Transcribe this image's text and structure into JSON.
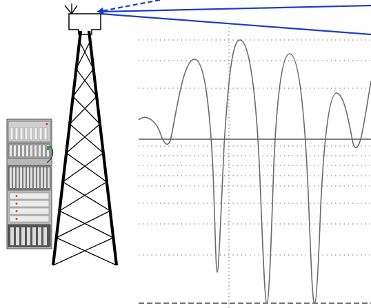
{
  "diagram": {
    "type": "radio-tower-signal-fading",
    "colors": {
      "background": "#ffffff",
      "signal_lines": "#1a3ccc",
      "tower": "#000000",
      "waveform": "#6a6a6a",
      "axis": "#333333",
      "grid": "#555555",
      "rack_body": "#b8b8b8",
      "rack_dark": "#4a4a4a"
    },
    "icons": {
      "antenna": "antenna-icon",
      "tower": "lattice-tower-icon",
      "equipment": "server-rack-icon"
    }
  }
}
